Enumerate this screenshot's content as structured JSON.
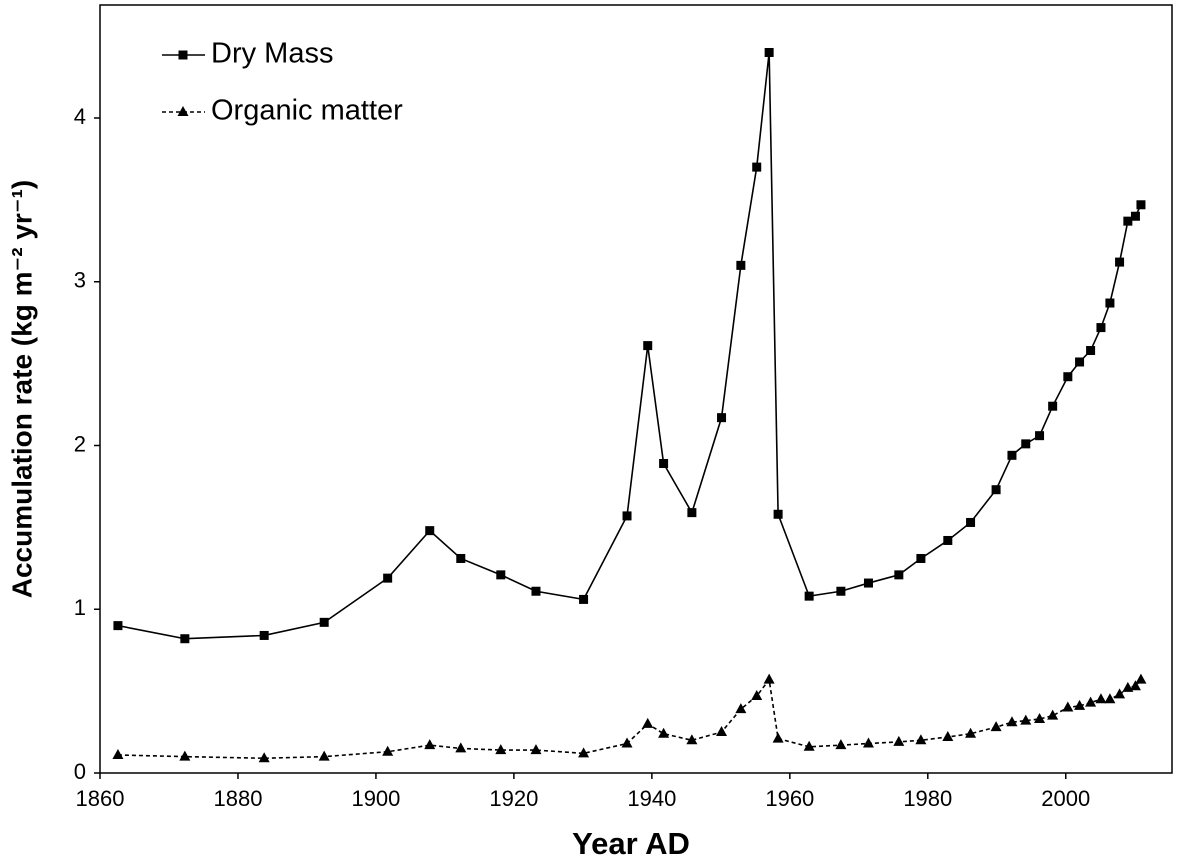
{
  "chart_data": {
    "type": "line",
    "x_label": "Year AD",
    "y_label": "Accumulation rate (kg m⁻² yr⁻¹)",
    "x": [
      1862.6,
      1872.3,
      1883.8,
      1892.5,
      1901.7,
      1907.8,
      1912.3,
      1918.1,
      1923.2,
      1930.1,
      1936.4,
      1939.4,
      1941.7,
      1945.8,
      1950.1,
      1952.9,
      1955.2,
      1957.0,
      1958.3,
      1962.8,
      1967.4,
      1971.4,
      1975.8,
      1979.0,
      1982.9,
      1986.2,
      1989.9,
      1992.2,
      1994.2,
      1996.2,
      1998.1,
      2000.3,
      2002.0,
      2003.6,
      2005.1,
      2006.4,
      2007.8,
      2009.0,
      2010.1,
      2010.9
    ],
    "series": [
      {
        "name": "Dry Mass",
        "color": "#000000",
        "marker": "square",
        "dash": false,
        "values": [
          0.9,
          0.82,
          0.84,
          0.92,
          1.19,
          1.48,
          1.31,
          1.21,
          1.11,
          1.06,
          1.57,
          2.61,
          1.89,
          1.59,
          2.17,
          3.1,
          3.7,
          4.4,
          1.58,
          1.08,
          1.11,
          1.16,
          1.21,
          1.31,
          1.42,
          1.53,
          1.73,
          1.94,
          2.01,
          2.06,
          2.24,
          2.42,
          2.51,
          2.58,
          2.72,
          2.87,
          3.12,
          3.37,
          3.4,
          3.47
        ]
      },
      {
        "name": "Organic matter",
        "color": "#000000",
        "marker": "triangle",
        "dash": true,
        "values": [
          0.11,
          0.1,
          0.09,
          0.1,
          0.13,
          0.17,
          0.15,
          0.14,
          0.14,
          0.12,
          0.18,
          0.3,
          0.24,
          0.2,
          0.25,
          0.39,
          0.47,
          0.57,
          0.21,
          0.16,
          0.17,
          0.18,
          0.19,
          0.2,
          0.22,
          0.24,
          0.28,
          0.31,
          0.32,
          0.33,
          0.35,
          0.4,
          0.41,
          0.43,
          0.45,
          0.45,
          0.48,
          0.52,
          0.53,
          0.57
        ]
      }
    ],
    "xlim": [
      1860,
      2015.4
    ],
    "xticks": [
      1860,
      1880,
      1900,
      1920,
      1940,
      1960,
      1980,
      2000
    ],
    "ylim": [
      0,
      4.69
    ],
    "yticks": [
      0,
      1,
      2,
      3,
      4
    ],
    "legend": "top-left",
    "grid": false
  }
}
